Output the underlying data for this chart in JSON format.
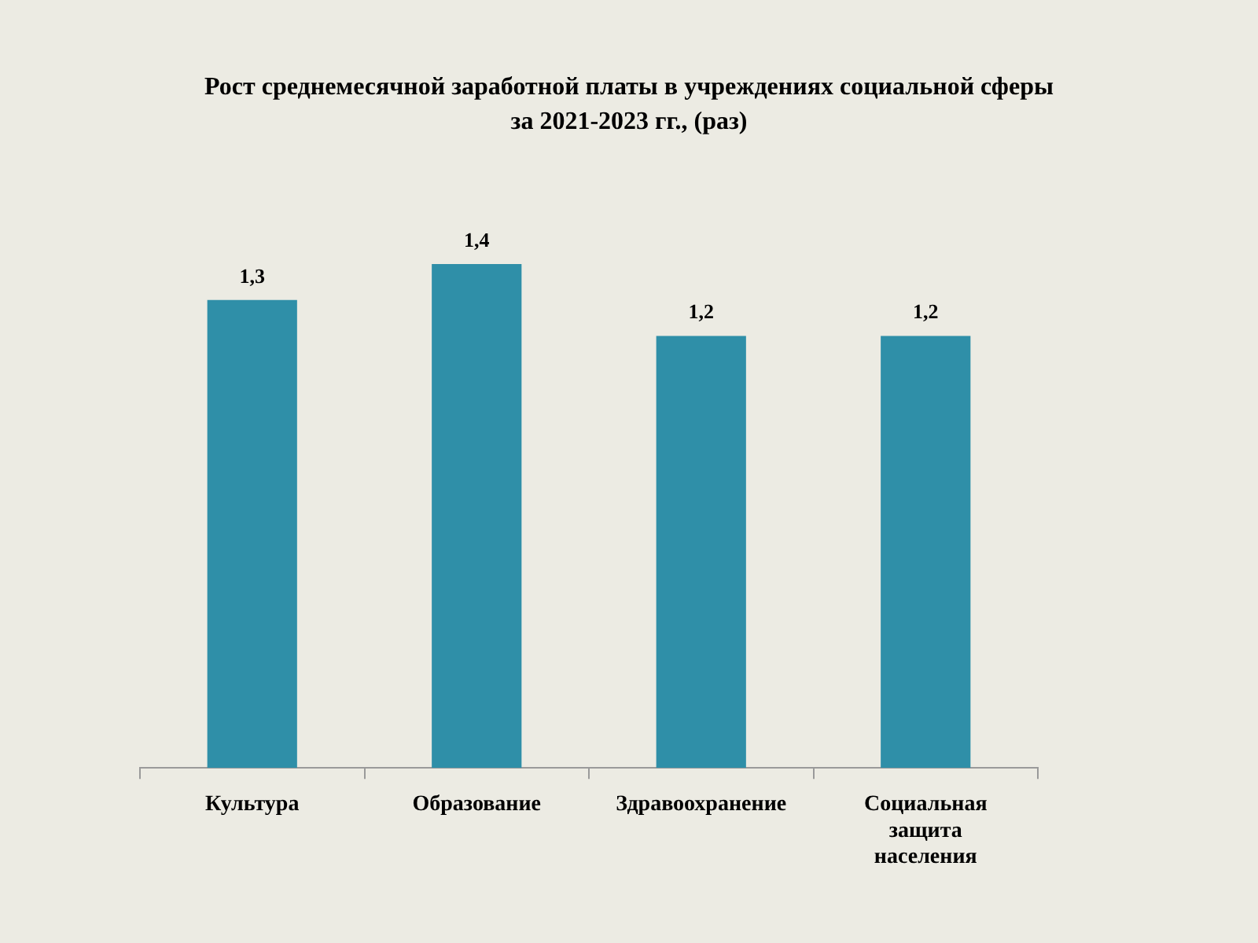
{
  "chart_data": {
    "type": "bar",
    "title": "Рост среднемесячной заработной платы в учреждениях социальной сферы\nза 2021-2023 гг., (раз)",
    "categories": [
      "Культура",
      "Образование",
      "Здравоохранение",
      "Социальная защита населения"
    ],
    "values": [
      1.3,
      1.4,
      1.2,
      1.2
    ],
    "value_labels": [
      "1,3",
      "1,4",
      "1,2",
      "1,2"
    ],
    "color": "#2f8fa8"
  }
}
